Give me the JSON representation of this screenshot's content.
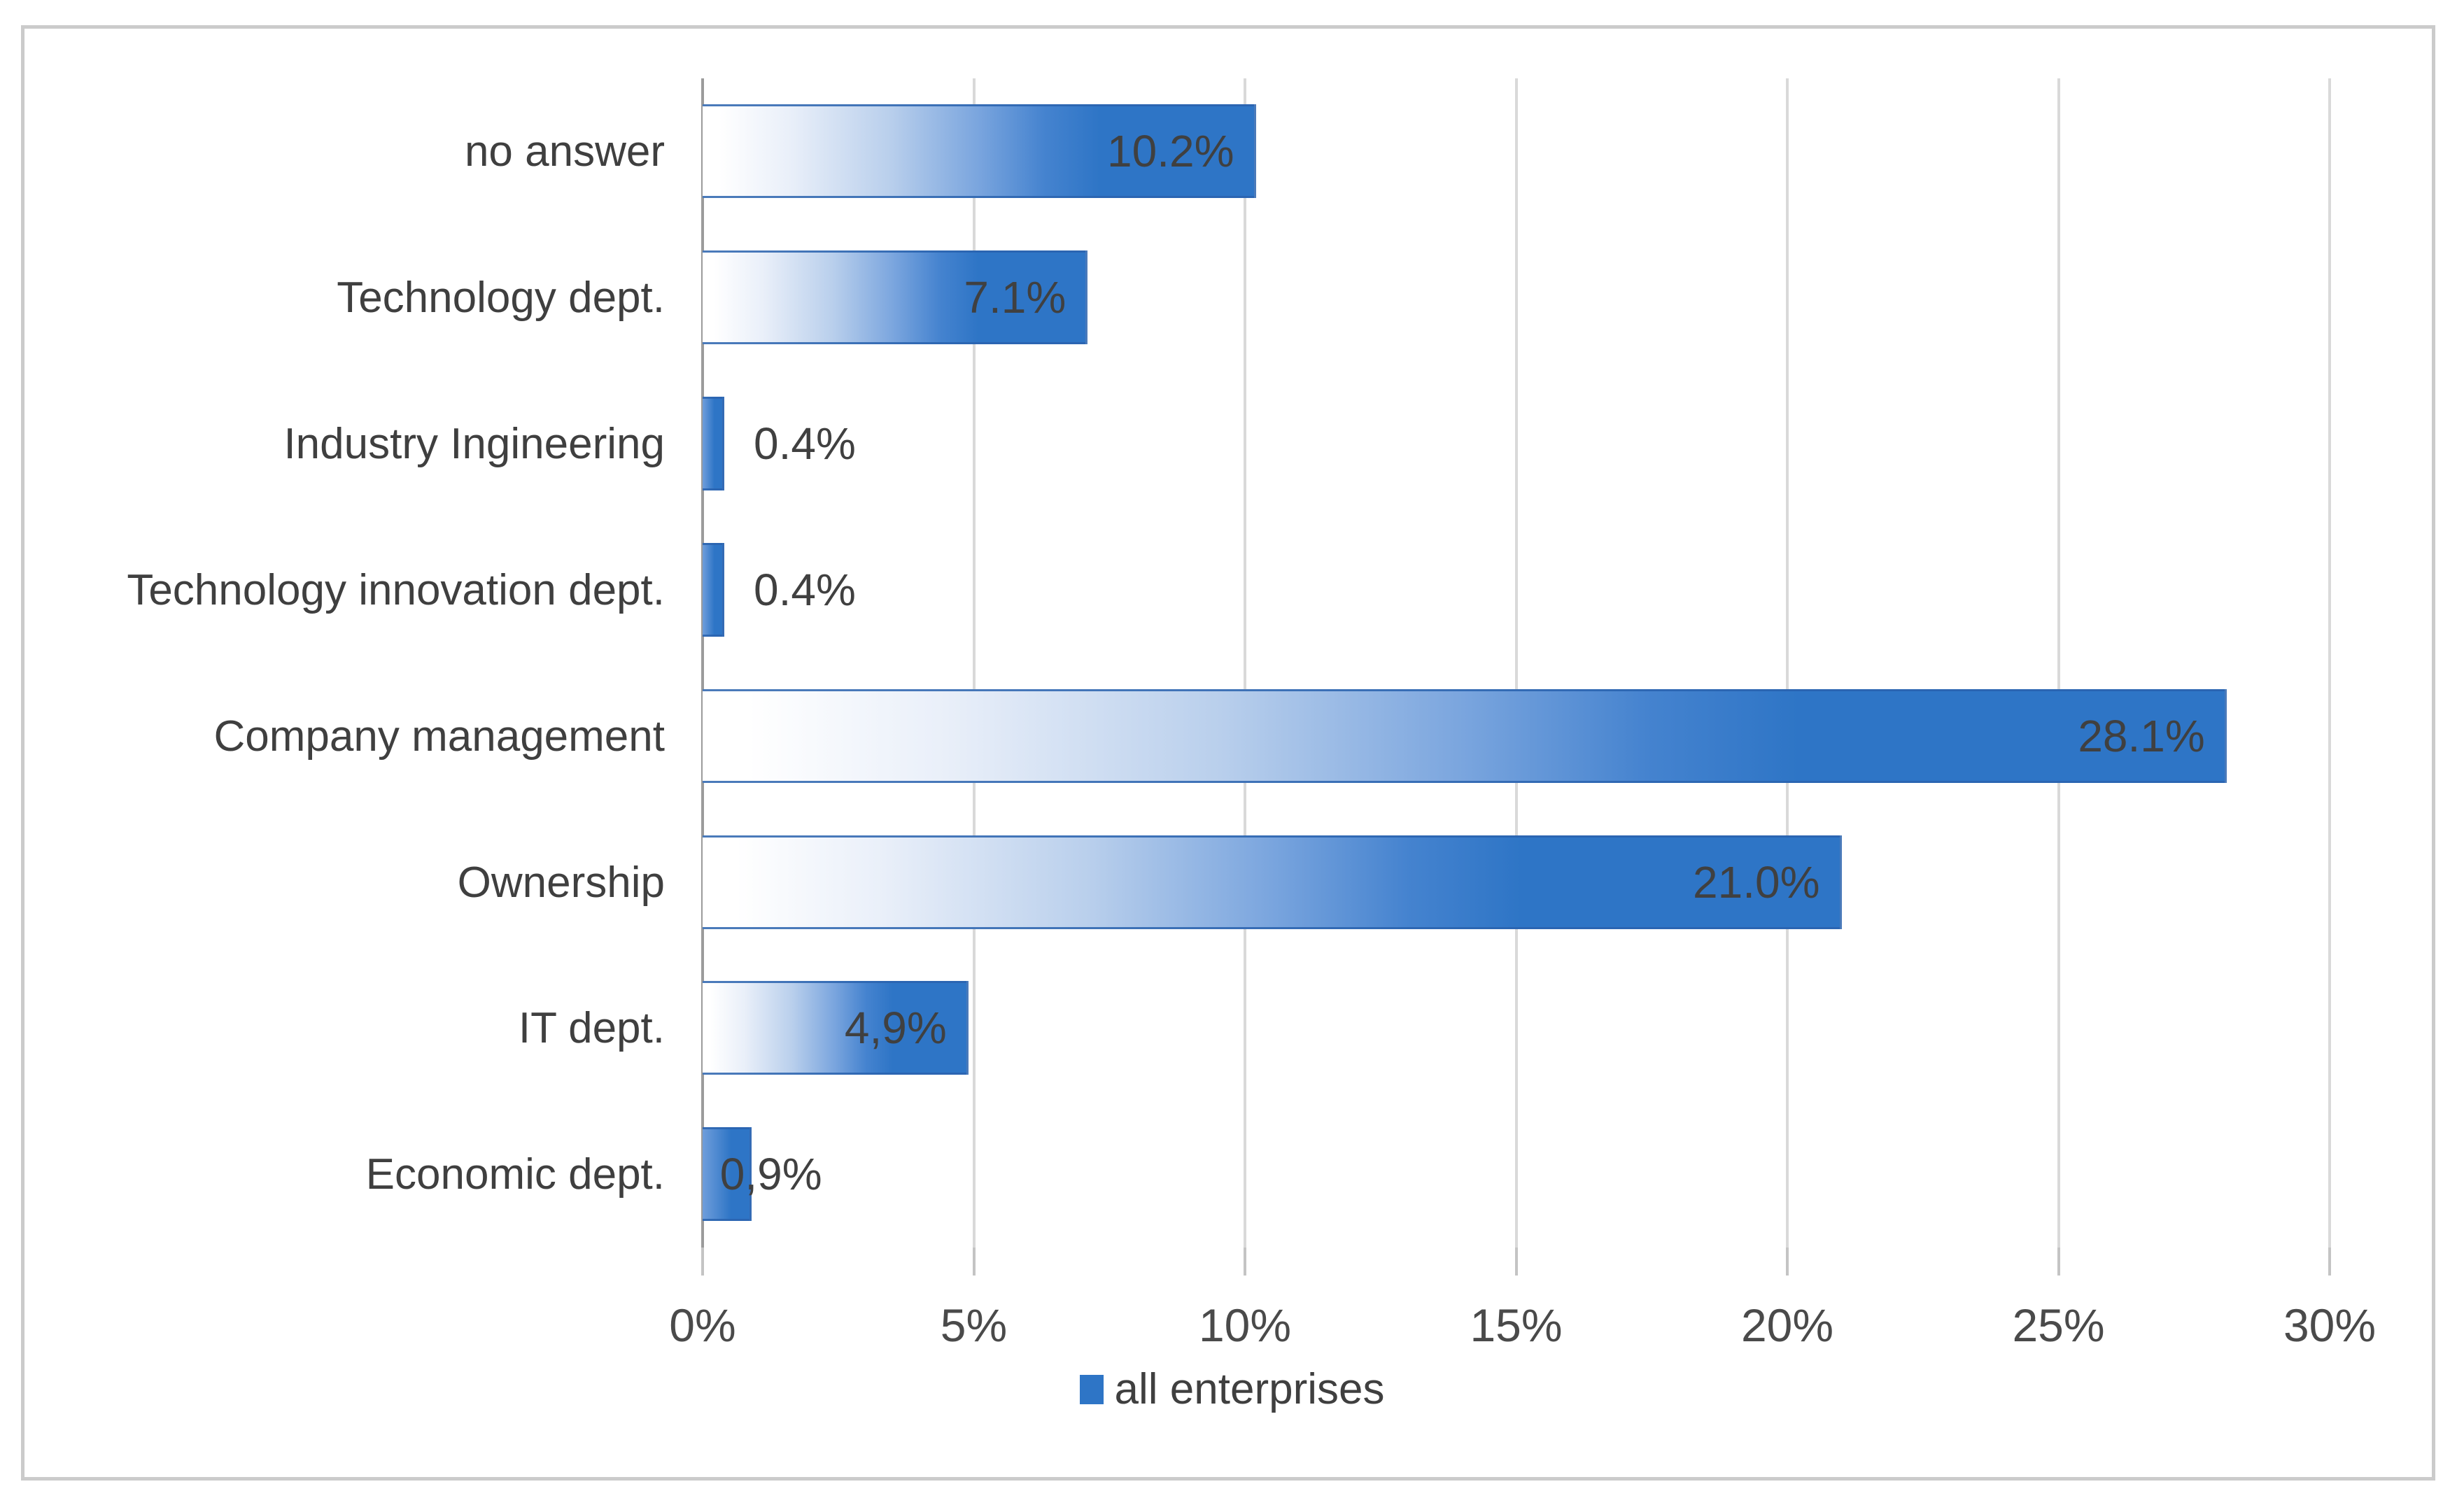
{
  "figure": {
    "background": "#ffffff",
    "border_color": "#cbcbcb"
  },
  "chart_data": {
    "type": "bar",
    "orientation": "horizontal",
    "title": "",
    "xlabel": "",
    "ylabel": "",
    "categories": [
      "no answer",
      "Technology dept.",
      "Industry Ingineering",
      "Technology innovation dept.",
      "Company management",
      "Ownership",
      "IT dept.",
      "Economic dept."
    ],
    "series": [
      {
        "name": "all enterprises",
        "values": [
          10.2,
          7.1,
          0.4,
          0.4,
          28.1,
          21.0,
          4.9,
          0.9
        ]
      }
    ],
    "data_labels": [
      "10.2%",
      "7.1%",
      "0.4%",
      "0.4%",
      "28.1%",
      "21.0%",
      "4,9%",
      "0,9%"
    ],
    "label_placement": [
      "inside-end",
      "inside-end",
      "outside-end",
      "outside-end",
      "inside-end",
      "inside-end",
      "inside-end",
      "straddle-end"
    ],
    "x_tick_labels": [
      "0%",
      "5%",
      "10%",
      "15%",
      "20%",
      "25%",
      "30%"
    ],
    "x_tick_values": [
      0,
      5,
      10,
      15,
      20,
      25,
      30
    ],
    "xlim": [
      0,
      30
    ],
    "grid": "vertical",
    "legend": {
      "position": "bottom-center",
      "entries": [
        {
          "label": "all enterprises",
          "swatch_color": "#2e75c6"
        }
      ]
    },
    "colors": {
      "bar_fill": "#2e75c6",
      "bar_fill_fade": "#ffffff",
      "bar_border": "#2a63ae",
      "gridline": "#d9d9d9",
      "axis_line": "#9b9b9b",
      "label_text": "#404040"
    }
  }
}
